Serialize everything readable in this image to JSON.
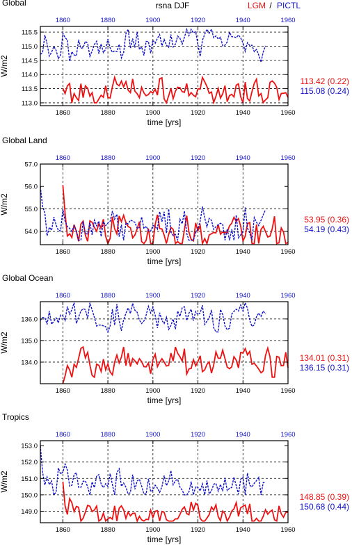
{
  "header": {
    "center_title": "rsna DJF",
    "legend_lgm": "LGM",
    "legend_sep": " / ",
    "legend_pictl": "PICTL"
  },
  "colors": {
    "lgm": "#ee1111",
    "pictl": "#1111cc",
    "axis": "#000000"
  },
  "chart_data": [
    {
      "type": "line",
      "title": "Global",
      "xlabel": "time [yrs]",
      "ylabel": "W/m2",
      "xlim": [
        1850,
        1960
      ],
      "ylim": [
        112.9,
        115.7
      ],
      "yticks": [
        113.0,
        113.5,
        114.0,
        114.5,
        115.0,
        115.5
      ],
      "ytick_labels": [
        "113.0",
        "113.5",
        "114.0",
        "114.5",
        "115.0",
        "115.5"
      ],
      "xticks": [
        1860,
        1880,
        1900,
        1920,
        1940,
        1960
      ],
      "xtick_labels": [
        "1860",
        "1880",
        "1900",
        "1920",
        "1940",
        "1960"
      ],
      "ygrid": [
        113.0,
        113.5,
        114.0,
        114.5,
        115.0,
        115.5
      ],
      "series": [
        {
          "name": "LGM",
          "mean_label": "113.42 (0.22)",
          "x_start": 1860,
          "x_end": 1960,
          "mean": 113.42,
          "sd": 0.22,
          "min": 113.0,
          "max": 113.9,
          "dashed": false
        },
        {
          "name": "PICTL",
          "mean_label": "115.08 (0.24)",
          "x_start": 1850,
          "x_end": 1950,
          "mean": 115.08,
          "sd": 0.24,
          "min": 114.4,
          "max": 115.6,
          "dashed": true
        }
      ]
    },
    {
      "type": "line",
      "title": "Global Land",
      "xlabel": "time [yrs]",
      "ylabel": "W/m2",
      "xlim": [
        1850,
        1960
      ],
      "ylim": [
        53.4,
        57.0
      ],
      "yticks": [
        54.0,
        55.0,
        56.0,
        57.0
      ],
      "ytick_labels": [
        "54.0",
        "55.0",
        "56.0",
        "57.0"
      ],
      "xticks": [
        1860,
        1880,
        1900,
        1920,
        1940,
        1960
      ],
      "xtick_labels": [
        "1860",
        "1880",
        "1900",
        "1920",
        "1940",
        "1960"
      ],
      "ygrid": [
        54.0,
        55.0
      ],
      "series": [
        {
          "name": "LGM",
          "mean_label": "53.95 (0.36)",
          "x_start": 1860,
          "x_end": 1960,
          "mean": 53.95,
          "sd": 0.36,
          "min": 53.45,
          "max": 54.8,
          "dashed": false,
          "initial": 56.05
        },
        {
          "name": "PICTL",
          "mean_label": "54.19 (0.43)",
          "x_start": 1850,
          "x_end": 1950,
          "mean": 54.19,
          "sd": 0.43,
          "min": 53.6,
          "max": 55.1,
          "dashed": true,
          "initial": 56.0
        }
      ]
    },
    {
      "type": "line",
      "title": "Global Ocean",
      "xlabel": "time [yrs]",
      "ylabel": "W/m2",
      "xlim": [
        1850,
        1960
      ],
      "ylim": [
        133.0,
        136.8
      ],
      "yticks": [
        134.0,
        135.0,
        136.0
      ],
      "ytick_labels": [
        "134.0",
        "135.0",
        "136.0"
      ],
      "xticks": [
        1860,
        1880,
        1900,
        1920,
        1940,
        1960
      ],
      "xtick_labels": [
        "1860",
        "1880",
        "1900",
        "1920",
        "1940",
        "1960"
      ],
      "ygrid": [
        134.0,
        135.0,
        136.0
      ],
      "series": [
        {
          "name": "LGM",
          "mean_label": "134.01 (0.31)",
          "x_start": 1860,
          "x_end": 1960,
          "mean": 134.01,
          "sd": 0.31,
          "min": 133.3,
          "max": 134.7,
          "dashed": false,
          "initial": 133.0
        },
        {
          "name": "PICTL",
          "mean_label": "136.15 (0.31)",
          "x_start": 1850,
          "x_end": 1950,
          "mean": 136.15,
          "sd": 0.31,
          "min": 135.4,
          "max": 136.75,
          "dashed": true
        }
      ]
    },
    {
      "type": "line",
      "title": "Tropics",
      "xlabel": "time [yrs]",
      "ylabel": "W/m2",
      "xlim": [
        1850,
        1960
      ],
      "ylim": [
        148.3,
        153.3
      ],
      "yticks": [
        149.0,
        150.0,
        151.0,
        152.0,
        153.0
      ],
      "ytick_labels": [
        "149.0",
        "150.0",
        "151.0",
        "152.0",
        "153.0"
      ],
      "xticks": [
        1860,
        1880,
        1900,
        1920,
        1940,
        1960
      ],
      "xtick_labels": [
        "1860",
        "1880",
        "1900",
        "1920",
        "1940",
        "1960"
      ],
      "ygrid": [
        149.0,
        150.0,
        151.0,
        152.0
      ],
      "series": [
        {
          "name": "LGM",
          "mean_label": "148.85 (0.39)",
          "x_start": 1860,
          "x_end": 1960,
          "mean": 148.85,
          "sd": 0.39,
          "min": 148.4,
          "max": 150.0,
          "dashed": false,
          "initial": 150.8
        },
        {
          "name": "PICTL",
          "mean_label": "150.68 (0.44)",
          "x_start": 1850,
          "x_end": 1950,
          "mean": 150.68,
          "sd": 0.44,
          "min": 150.0,
          "max": 151.9,
          "dashed": true,
          "initial": 153.0
        }
      ]
    }
  ]
}
